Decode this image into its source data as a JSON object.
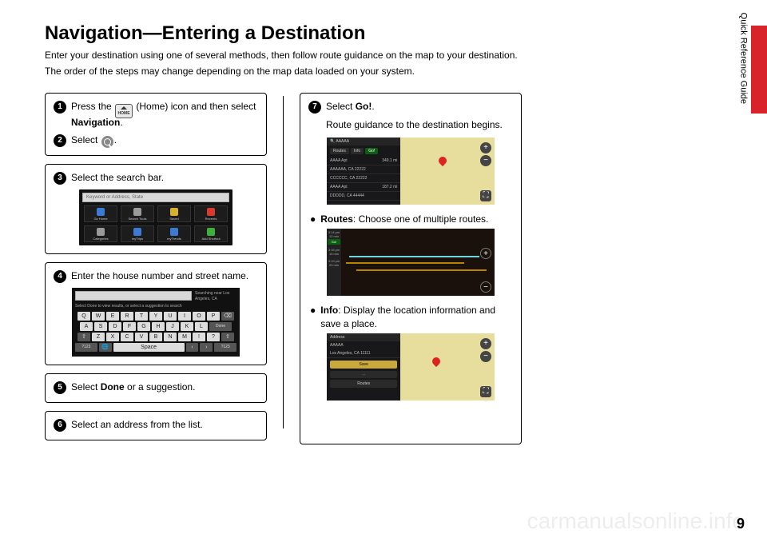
{
  "page": {
    "title": "Navigation—Entering a Destination",
    "intro1": "Enter your destination using one of several methods, then follow route guidance on the map to your destination.",
    "intro2": "The order of the steps may change depending on the map data loaded on your system.",
    "side_label": "Quick Reference Guide",
    "page_number": "9",
    "watermark": "carmanualsonline.info"
  },
  "steps": {
    "s1": {
      "n": "1",
      "pre": "Press the ",
      "home": "HOME",
      "mid": " (Home) icon and then select ",
      "bold": "Navigation",
      "post": "."
    },
    "s2": {
      "n": "2",
      "pre": "Select ",
      "post": "."
    },
    "s3": {
      "n": "3",
      "text": "Select the search bar."
    },
    "s4": {
      "n": "4",
      "text": "Enter the house number and street name."
    },
    "s5": {
      "n": "5",
      "pre": "Select ",
      "bold": "Done",
      "post": " or a suggestion."
    },
    "s6": {
      "n": "6",
      "text": "Select an address from the list."
    },
    "s7": {
      "n": "7",
      "pre": "Select ",
      "bold": "Go!",
      "post": ".",
      "sub": "Route guidance to the destination begins."
    }
  },
  "bullets": {
    "routes": {
      "bold": "Routes",
      "text": ": Choose one of multiple routes."
    },
    "info": {
      "bold": "Info",
      "text": ": Display the location information and save a place."
    }
  },
  "shot_search": {
    "placeholder": "Keyword or Address, State",
    "tiles": [
      {
        "label": "Go Home",
        "color": "#3b7bd6"
      },
      {
        "label": "Search Tools",
        "color": "#9a9a9a"
      },
      {
        "label": "Saved",
        "color": "#d8b12e"
      },
      {
        "label": "Recents",
        "color": "#d83a2e"
      },
      {
        "label": "Categories",
        "color": "#9a9a9a"
      },
      {
        "label": "myTrips",
        "color": "#3b7bd6"
      },
      {
        "label": "myTrends",
        "color": "#3b7bd6"
      },
      {
        "label": "Add Shortcut",
        "color": "#3fae3a"
      }
    ]
  },
  "shot_kbd": {
    "searching": "Searching near Los Angeles, CA",
    "hint": "Select Done to view results, or select a suggestion to search",
    "row1": [
      "Q",
      "W",
      "E",
      "R",
      "T",
      "Y",
      "U",
      "I",
      "O",
      "P"
    ],
    "row2": [
      "A",
      "S",
      "D",
      "F",
      "G",
      "H",
      "J",
      "K",
      "L"
    ],
    "row3": [
      "Z",
      "X",
      "C",
      "V",
      "B",
      "N",
      "M",
      "!",
      "?"
    ],
    "done": "Done",
    "space": "Space",
    "alt": "?123"
  },
  "shot_route_list": {
    "header": "AAAAA",
    "tabs": [
      "Routes",
      "Info",
      "Go!"
    ],
    "rows": [
      {
        "name": "AAAA Apt",
        "dist": "349.1 mi"
      },
      {
        "name": "AAAAAA, CA 22222",
        "dist": ""
      },
      {
        "name": "CCCCCC, CA 22222",
        "dist": ""
      },
      {
        "name": "AAAA Apt",
        "dist": "187.2 mi"
      },
      {
        "name": "DDDDD, CA 44444",
        "dist": ""
      }
    ]
  },
  "shot_multi": {
    "times": [
      {
        "eta": "3:14 pm",
        "dur": "12 min",
        "go": "Go!"
      },
      {
        "eta": "3:16 pm",
        "dur": "15 min"
      },
      {
        "eta": "3:19 pm",
        "dur": "20 min"
      }
    ]
  },
  "shot_info": {
    "header": "Address",
    "addr1": "AAAAA",
    "addr2": "Los Angeles, CA 11111",
    "save": "Save",
    "routes": "Routes"
  }
}
